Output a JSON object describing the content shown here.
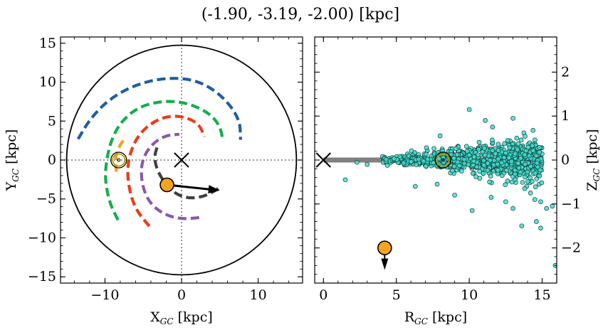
{
  "title": "(-1.90, -3.19, -2.00) [kpc]",
  "colors": {
    "blue_arm": "#1f5fa0",
    "green_arm": "#12b04a",
    "red_arm": "#f03a16",
    "purple_arm": "#8a5ba5",
    "orange_arm": "#f5a21b",
    "dark_arm": "#404040",
    "object": "#f5a41c",
    "stars": "#3de0d0",
    "sun_ring": "#b59b00",
    "disk_line": "#808080"
  },
  "chart_data": [
    {
      "type": "line",
      "panel": "left",
      "xlabel_main": "X",
      "xlabel_sub": "GC",
      "xlabel_unit": " [kpc]",
      "ylabel_main": "Y",
      "ylabel_sub": "GC",
      "ylabel_unit": " [kpc]",
      "xlim": [
        -15.8,
        15.8
      ],
      "ylim": [
        -15.8,
        15.8
      ],
      "xticks": [
        -10,
        0,
        10
      ],
      "xtick_labels": [
        "−10",
        "0",
        "10"
      ],
      "yticks": [
        -15,
        -10,
        -5,
        0,
        5,
        10,
        15
      ],
      "ytick_labels": [
        "−15",
        "−10",
        "−5",
        "0",
        "5",
        "10",
        "15"
      ],
      "disk_radius": 15,
      "galactic_center": [
        0,
        0
      ],
      "sun": [
        -8.2,
        0
      ],
      "object": [
        -1.9,
        -3.19
      ],
      "velocity_arrow": {
        "from": [
          -1.9,
          -3.19
        ],
        "to": [
          5.0,
          -3.9
        ]
      },
      "series": [
        {
          "color_key": "blue_arm",
          "points": [
            [
              -13.5,
              2.7
            ],
            [
              -12,
              5.2
            ],
            [
              -9.5,
              7.8
            ],
            [
              -6,
              9.7
            ],
            [
              -2,
              10.6
            ],
            [
              2,
              10.3
            ],
            [
              5.3,
              8.3
            ],
            [
              7.6,
              5.3
            ],
            [
              7.7,
              2.6
            ]
          ]
        },
        {
          "color_key": "green_arm",
          "points": [
            [
              -8.3,
              -7.7
            ],
            [
              -9.4,
              -5.5
            ],
            [
              -10,
              -2.5
            ],
            [
              -9.8,
              0
            ],
            [
              -9.2,
              2.5
            ],
            [
              -8,
              4.8
            ],
            [
              -5.7,
              6.8
            ],
            [
              -2.5,
              7.6
            ],
            [
              0.5,
              7.4
            ],
            [
              3.4,
              6.2
            ],
            [
              5,
              4.5
            ],
            [
              5.4,
              2.5
            ]
          ]
        },
        {
          "color_key": "red_arm",
          "points": [
            [
              -4.2,
              -8.5
            ],
            [
              -5.9,
              -6.5
            ],
            [
              -6.8,
              -4
            ],
            [
              -7.1,
              -1.3
            ],
            [
              -6.7,
              1
            ],
            [
              -5.6,
              3.3
            ],
            [
              -3.6,
              5
            ],
            [
              -1.5,
              5.7
            ],
            [
              0.6,
              5.5
            ],
            [
              2.3,
              4.6
            ],
            [
              3,
              3
            ]
          ]
        },
        {
          "color_key": "purple_arm",
          "points": [
            [
              2.3,
              -7.4
            ],
            [
              0,
              -7.6
            ],
            [
              -2.3,
              -7
            ],
            [
              -4.2,
              -5.5
            ],
            [
              -5.1,
              -3.4
            ],
            [
              -5.3,
              -1.2
            ],
            [
              -4.9,
              0.6
            ],
            [
              -3.6,
              2.3
            ],
            [
              -1.9,
              3.2
            ],
            [
              -0.3,
              3.3
            ]
          ]
        },
        {
          "color_key": "orange_arm",
          "points": [
            [
              -7.6,
              2.5
            ],
            [
              -8,
              2
            ],
            [
              -8.7,
              0.3
            ],
            [
              -8.5,
              -1.5
            ]
          ]
        },
        {
          "color_key": "dark_arm",
          "points": [
            [
              -3.2,
              1.6
            ],
            [
              -3.5,
              0.7
            ],
            [
              -3.4,
              -0.7
            ],
            [
              -2.6,
              -2.4
            ],
            [
              -1.3,
              -4
            ],
            [
              0.5,
              -4.9
            ],
            [
              2.6,
              -4.8
            ],
            [
              4.3,
              -4
            ],
            [
              5,
              -3.5
            ]
          ]
        }
      ]
    },
    {
      "type": "scatter",
      "panel": "right",
      "xlabel_main": "R",
      "xlabel_sub": "GC",
      "xlabel_unit": " [kpc]",
      "ylabel_main": "Z",
      "ylabel_sub": "GC",
      "ylabel_unit": " [kpc]",
      "xlim": [
        -0.6,
        16
      ],
      "ylim": [
        -2.8,
        2.8
      ],
      "xticks": [
        0,
        5,
        10,
        15
      ],
      "xtick_labels": [
        "0",
        "5",
        "10",
        "15"
      ],
      "yticks": [
        -2,
        -1,
        0,
        1,
        2
      ],
      "ytick_labels": [
        "−2",
        "−1",
        "0",
        "1",
        "2"
      ],
      "disk_line": {
        "from": [
          0,
          0
        ],
        "to": [
          15,
          0
        ]
      },
      "galactic_center": [
        0,
        0
      ],
      "sun": [
        8.2,
        0
      ],
      "object": [
        4.2,
        -2.0
      ],
      "velocity_arrow": {
        "from": [
          4.2,
          -2.0
        ],
        "to": [
          4.2,
          -2.5
        ]
      },
      "star_cloud": {
        "count": 900,
        "r_range": [
          4,
          15
        ],
        "z_spread_at_r4": 0.05,
        "z_spread_at_r15": 0.45,
        "outliers": [
          [
            1.5,
            -0.45
          ],
          [
            2.3,
            -0.05
          ],
          [
            3.0,
            -0.1
          ],
          [
            6.3,
            -0.6
          ],
          [
            7.8,
            -0.55
          ],
          [
            10.0,
            1.15
          ],
          [
            11.1,
            0.9
          ],
          [
            11.6,
            0.75
          ],
          [
            13.0,
            0.95
          ],
          [
            12.5,
            -0.95
          ],
          [
            13.0,
            -1.1
          ],
          [
            14.5,
            -0.9
          ],
          [
            14.9,
            -0.95
          ],
          [
            15.3,
            -1.1
          ],
          [
            15.7,
            -1.05
          ],
          [
            14.6,
            -1.4
          ],
          [
            14.9,
            -1.55
          ],
          [
            13.6,
            -1.5
          ],
          [
            11.5,
            -0.85
          ],
          [
            10.2,
            -1.15
          ],
          [
            9.0,
            -0.8
          ],
          [
            8.0,
            0.55
          ],
          [
            15.9,
            -2.4
          ],
          [
            13.8,
            -0.65
          ],
          [
            14.2,
            -0.75
          ]
        ]
      }
    }
  ]
}
